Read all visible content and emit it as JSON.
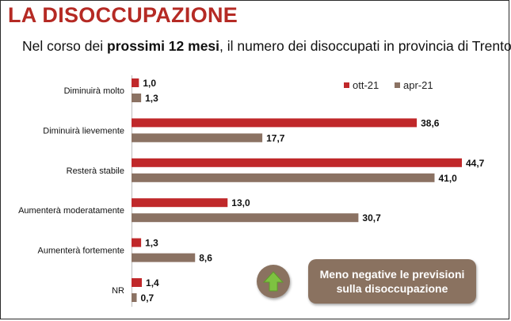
{
  "header": {
    "title": "LA DISOCCUPAZIONE",
    "subtitle_pre": "Nel corso dei ",
    "subtitle_bold": "prossimi 12 mesi",
    "subtitle_post": ", il numero dei disoccupati in provincia di Trento:"
  },
  "callout": {
    "line1": "Meno negative le previsioni",
    "line2": "sulla disoccupazione",
    "icon": "up-arrow-icon"
  },
  "colors": {
    "title": "#b52a24",
    "series_1": "#c0282a",
    "series_2": "#8b7263",
    "callout_bg": "#8a7260",
    "arrow_green": "#7ec241"
  },
  "chart_data": {
    "type": "bar",
    "orientation": "horizontal",
    "categories": [
      "Diminuirà molto",
      "Diminuirà lievemente",
      "Resterà stabile",
      "Aumenterà moderatamente",
      "Aumenterà fortemente",
      "NR"
    ],
    "series": [
      {
        "name": "ott-21",
        "values": [
          1.0,
          38.6,
          44.7,
          13.0,
          1.3,
          1.4
        ],
        "labels": [
          "1,0",
          "38,6",
          "44,7",
          "13,0",
          "1,3",
          "1,4"
        ]
      },
      {
        "name": "apr-21",
        "values": [
          1.3,
          17.7,
          41.0,
          30.7,
          8.6,
          0.7
        ],
        "labels": [
          "1,3",
          "17,7",
          "41,0",
          "30,7",
          "8,6",
          "0,7"
        ]
      }
    ],
    "legend_position": "top-right",
    "grid": false,
    "xlim": [
      0,
      44.7
    ]
  }
}
